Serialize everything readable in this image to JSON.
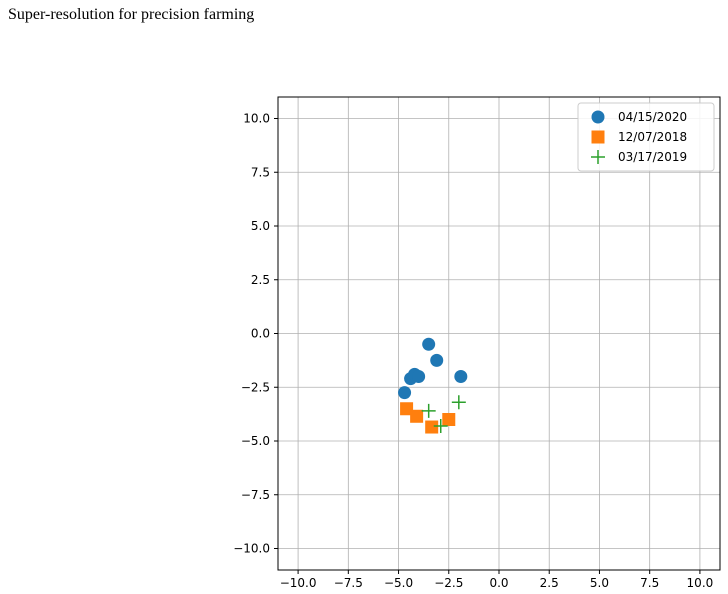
{
  "page": {
    "caption": "Super-resolution for precision farming"
  },
  "chart_data": {
    "type": "scatter",
    "xlim": [
      -11,
      11
    ],
    "ylim": [
      -11,
      11
    ],
    "xticks": [
      -10,
      -7.5,
      -5,
      -2.5,
      0,
      2.5,
      5,
      7.5,
      10
    ],
    "yticks": [
      -10,
      -7.5,
      -5,
      -2.5,
      0,
      2.5,
      5,
      7.5,
      10
    ],
    "xtick_labels": [
      "−10.0",
      "−7.5",
      "−5.0",
      "−2.5",
      "0.0",
      "2.5",
      "5.0",
      "7.5",
      "10.0"
    ],
    "ytick_labels": [
      "−10.0",
      "−7.5",
      "−5.0",
      "−2.5",
      "0.0",
      "2.5",
      "5.0",
      "7.5",
      "10.0"
    ],
    "grid": true,
    "legend_position": "top-right",
    "series": [
      {
        "name": "04/15/2020",
        "marker": "circle",
        "color": "#1f77b4",
        "points": [
          [
            -4.7,
            -2.75
          ],
          [
            -4.4,
            -2.1
          ],
          [
            -4.2,
            -1.9
          ],
          [
            -4.0,
            -2.0
          ],
          [
            -3.5,
            -0.5
          ],
          [
            -3.1,
            -1.25
          ],
          [
            -1.9,
            -2.0
          ]
        ]
      },
      {
        "name": "12/07/2018",
        "marker": "square",
        "color": "#ff7f0e",
        "points": [
          [
            -4.6,
            -3.5
          ],
          [
            -4.1,
            -3.85
          ],
          [
            -3.35,
            -4.35
          ],
          [
            -2.5,
            -4.0
          ]
        ]
      },
      {
        "name": "03/17/2019",
        "marker": "plus",
        "color": "#2ca02c",
        "points": [
          [
            -3.5,
            -3.6
          ],
          [
            -2.9,
            -4.3
          ],
          [
            -2.0,
            -3.2
          ]
        ]
      }
    ]
  }
}
